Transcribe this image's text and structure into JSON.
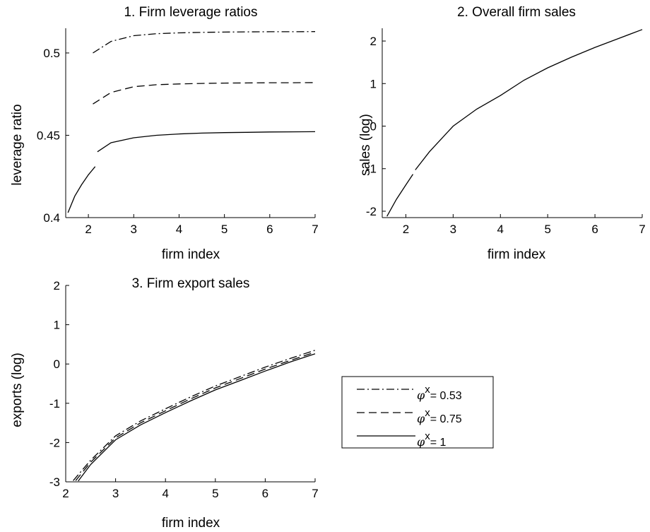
{
  "chart_data": [
    {
      "type": "line",
      "title": "1. Firm leverage ratios",
      "xlabel": "firm index",
      "ylabel": "leverage ratio",
      "xlim": [
        1.5,
        7
      ],
      "ylim": [
        0.4,
        0.515
      ],
      "xticks": [
        "2",
        "3",
        "4",
        "5",
        "6",
        "7"
      ],
      "yticks": [
        "0.4",
        "0.45",
        "0.5"
      ],
      "grid": false,
      "series": [
        {
          "key": "phi053",
          "style": "dashdot",
          "segments": [
            {
              "x": [
                2.1,
                2.5,
                3,
                3.5,
                4,
                4.5,
                5,
                5.5,
                6,
                6.5,
                7
              ],
              "y": [
                0.5,
                0.507,
                0.5105,
                0.5117,
                0.5122,
                0.5125,
                0.5127,
                0.5128,
                0.5129,
                0.5129,
                0.513
              ]
            }
          ]
        },
        {
          "key": "phi075",
          "style": "dashed",
          "segments": [
            {
              "x": [
                2.1,
                2.5,
                3,
                3.5,
                4,
                4.5,
                5,
                5.5,
                6,
                6.5,
                7
              ],
              "y": [
                0.469,
                0.476,
                0.4795,
                0.4807,
                0.4812,
                0.4815,
                0.4817,
                0.4818,
                0.4819,
                0.4819,
                0.482
              ]
            }
          ]
        },
        {
          "key": "phi1",
          "style": "solid",
          "segments": [
            {
              "x": [
                1.55,
                1.7,
                1.85,
                2.0,
                2.15
              ],
              "y": [
                0.403,
                0.413,
                0.42,
                0.426,
                0.431
              ]
            },
            {
              "x": [
                2.2,
                2.5,
                3,
                3.5,
                4,
                4.5,
                5,
                5.5,
                6,
                6.5,
                7
              ],
              "y": [
                0.44,
                0.4455,
                0.4485,
                0.45,
                0.4508,
                0.4513,
                0.4516,
                0.4518,
                0.452,
                0.4521,
                0.4522
              ]
            }
          ]
        }
      ]
    },
    {
      "type": "line",
      "title": "2. Overall firm sales",
      "xlabel": "firm index",
      "ylabel": "sales (log)",
      "xlim": [
        1.5,
        7
      ],
      "ylim": [
        -2.15,
        2.3
      ],
      "xticks": [
        "2",
        "3",
        "4",
        "5",
        "6",
        "7"
      ],
      "yticks": [
        "-2",
        "-1",
        "0",
        "1",
        "2"
      ],
      "grid": false,
      "series": [
        {
          "key": "all",
          "style": "solid",
          "segments": [
            {
              "x": [
                1.6,
                1.8,
                2.0,
                2.15
              ],
              "y": [
                -2.12,
                -1.72,
                -1.38,
                -1.13
              ]
            },
            {
              "x": [
                2.2,
                2.5,
                3,
                3.5,
                4,
                4.5,
                5,
                5.5,
                6,
                6.5,
                7
              ],
              "y": [
                -1.03,
                -0.6,
                0.0,
                0.4,
                0.72,
                1.08,
                1.37,
                1.62,
                1.85,
                2.06,
                2.27
              ]
            }
          ]
        }
      ]
    },
    {
      "type": "line",
      "title": "3. Firm export sales",
      "xlabel": "firm index",
      "ylabel": "exports (log)",
      "xlim": [
        2,
        7
      ],
      "ylim": [
        -3,
        2
      ],
      "xticks": [
        "2",
        "3",
        "4",
        "5",
        "6",
        "7"
      ],
      "yticks": [
        "-3",
        "-2",
        "-1",
        "0",
        "1",
        "2"
      ],
      "grid": false,
      "series": [
        {
          "key": "phi053",
          "style": "dashdot",
          "segments": [
            {
              "x": [
                2.15,
                2.5,
                3,
                3.5,
                4,
                4.5,
                5,
                5.5,
                6,
                6.5,
                7
              ],
              "y": [
                -2.97,
                -2.45,
                -1.83,
                -1.45,
                -1.14,
                -0.84,
                -0.56,
                -0.32,
                -0.08,
                0.14,
                0.35
              ]
            }
          ]
        },
        {
          "key": "phi075",
          "style": "dashed",
          "segments": [
            {
              "x": [
                2.2,
                2.5,
                3,
                3.5,
                4,
                4.5,
                5,
                5.5,
                6,
                6.5,
                7
              ],
              "y": [
                -2.97,
                -2.5,
                -1.88,
                -1.5,
                -1.19,
                -0.89,
                -0.61,
                -0.37,
                -0.13,
                0.09,
                0.3
              ]
            }
          ]
        },
        {
          "key": "phi1",
          "style": "solid",
          "segments": [
            {
              "x": [
                2.25,
                2.5,
                3,
                3.5,
                4,
                4.5,
                5,
                5.5,
                6,
                6.5,
                7
              ],
              "y": [
                -2.98,
                -2.56,
                -1.93,
                -1.55,
                -1.24,
                -0.94,
                -0.66,
                -0.42,
                -0.18,
                0.05,
                0.26
              ]
            }
          ]
        }
      ]
    }
  ],
  "legend": {
    "placement": "right of panel 3",
    "entries": [
      {
        "key": "phi053",
        "style": "dashdot",
        "symbol": "φ",
        "sup": "x",
        "text": "= 0.53"
      },
      {
        "key": "phi075",
        "style": "dashed",
        "symbol": "φ",
        "sup": "x",
        "text": "= 0.75"
      },
      {
        "key": "phi1",
        "style": "solid",
        "symbol": "φ",
        "sup": "x",
        "text": "= 1"
      }
    ]
  }
}
